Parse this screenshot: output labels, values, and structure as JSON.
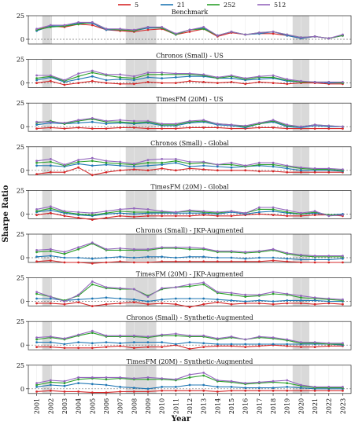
{
  "chart_data": {
    "type": "line",
    "ylabel": "Sharpe Ratio",
    "xlabel": "Year",
    "x": [
      2001,
      2002,
      2003,
      2004,
      2005,
      2006,
      2007,
      2008,
      2009,
      2010,
      2011,
      2012,
      2013,
      2014,
      2015,
      2016,
      2017,
      2018,
      2019,
      2020,
      2021,
      2022,
      2023
    ],
    "legend": {
      "placement": "top-center",
      "entries": [
        {
          "name": "5",
          "color": "#d62728"
        },
        {
          "name": "21",
          "color": "#1f77b4"
        },
        {
          "name": "252",
          "color": "#2ca02c"
        },
        {
          "name": "512",
          "color": "#9467bd"
        }
      ]
    },
    "ylim": [
      -5,
      25
    ],
    "yticks": [
      0,
      25
    ],
    "grid": true,
    "shaded_periods": [
      [
        2001.4,
        2002.1
      ],
      [
        2007.4,
        2009.6
      ],
      [
        2019.4,
        2020.6
      ]
    ],
    "panels": [
      {
        "title": "Benchmark",
        "series": [
          {
            "name": "5",
            "values": [
              10,
              14,
              13,
              16,
              15,
              10,
              9,
              8,
              10,
              11,
              5,
              8,
              11,
              3,
              7,
              5,
              6,
              6,
              4,
              1,
              3,
              1,
              4
            ]
          },
          {
            "name": "21",
            "values": [
              9,
              14,
              14,
              17,
              17,
              10,
              10,
              9,
              12,
              12,
              5,
              10,
              12,
              4,
              8,
              5,
              6,
              8,
              4,
              1,
              3,
              1,
              4
            ]
          },
          {
            "name": "252",
            "values": [
              10,
              13,
              14,
              16,
              18,
              11,
              10,
              9,
              13,
              12,
              5,
              10,
              11,
              4,
              8,
              5,
              7,
              8,
              5,
              2,
              3,
              1,
              4
            ]
          },
          {
            "name": "512",
            "values": [
              11,
              15,
              15,
              18,
              18,
              11,
              11,
              10,
              13,
              13,
              6,
              10,
              13,
              4,
              8,
              5,
              7,
              8,
              5,
              2,
              3,
              1,
              5
            ]
          }
        ]
      },
      {
        "title": "Chronos (Small) - US",
        "series": [
          {
            "name": "5",
            "values": [
              0,
              2,
              -2,
              0,
              2,
              0,
              -1,
              -1,
              1,
              0,
              0,
              2,
              1,
              0,
              1,
              -1,
              1,
              0,
              -1,
              0,
              0,
              -1,
              -1
            ]
          },
          {
            "name": "21",
            "values": [
              3,
              6,
              1,
              4,
              7,
              3,
              4,
              3,
              6,
              5,
              6,
              7,
              7,
              5,
              5,
              3,
              4,
              5,
              2,
              1,
              1,
              0,
              0
            ]
          },
          {
            "name": "252",
            "values": [
              5,
              7,
              2,
              7,
              11,
              8,
              6,
              5,
              9,
              9,
              9,
              9,
              8,
              5,
              7,
              4,
              6,
              6,
              3,
              1,
              1,
              1,
              0
            ]
          },
          {
            "name": "512",
            "values": [
              8,
              8,
              3,
              10,
              13,
              9,
              9,
              7,
              11,
              11,
              10,
              10,
              9,
              6,
              8,
              5,
              7,
              8,
              4,
              2,
              1,
              1,
              1
            ]
          }
        ]
      },
      {
        "title": "TimesFM (20M) - US",
        "series": [
          {
            "name": "5",
            "values": [
              -2,
              -1,
              -2,
              -1,
              -2,
              -2,
              -1,
              -1,
              -2,
              -2,
              -2,
              -1,
              -1,
              -1,
              -2,
              -2,
              -1,
              -1,
              -2,
              -2,
              -2,
              -2,
              -2
            ]
          },
          {
            "name": "21",
            "values": [
              2,
              4,
              3,
              4,
              5,
              3,
              4,
              3,
              4,
              1,
              1,
              4,
              5,
              2,
              1,
              -1,
              3,
              5,
              0,
              -1,
              1,
              0,
              0
            ]
          },
          {
            "name": "252",
            "values": [
              4,
              6,
              3,
              6,
              8,
              5,
              5,
              4,
              5,
              2,
              2,
              5,
              6,
              3,
              2,
              0,
              3,
              6,
              1,
              0,
              2,
              1,
              0
            ]
          },
          {
            "name": "512",
            "values": [
              5,
              5,
              4,
              7,
              9,
              6,
              7,
              6,
              6,
              3,
              3,
              6,
              7,
              3,
              2,
              1,
              4,
              7,
              2,
              0,
              2,
              1,
              0
            ]
          }
        ]
      },
      {
        "title": "Chronos (Small) - Global",
        "series": [
          {
            "name": "5",
            "values": [
              -4,
              -2,
              -2,
              3,
              -5,
              -2,
              0,
              1,
              0,
              2,
              0,
              2,
              1,
              0,
              0,
              0,
              -1,
              -1,
              -2,
              -2,
              -2,
              -2,
              -2
            ]
          },
          {
            "name": "21",
            "values": [
              5,
              5,
              4,
              7,
              5,
              6,
              5,
              4,
              5,
              6,
              8,
              4,
              5,
              4,
              3,
              4,
              5,
              4,
              2,
              0,
              0,
              0,
              -1
            ]
          },
          {
            "name": "252",
            "values": [
              8,
              9,
              5,
              9,
              10,
              8,
              7,
              6,
              8,
              8,
              10,
              7,
              8,
              6,
              6,
              4,
              6,
              6,
              4,
              2,
              1,
              1,
              0
            ]
          },
          {
            "name": "512",
            "values": [
              10,
              12,
              6,
              11,
              13,
              10,
              9,
              7,
              11,
              12,
              12,
              9,
              9,
              6,
              8,
              5,
              8,
              8,
              5,
              3,
              2,
              2,
              1
            ]
          }
        ]
      },
      {
        "title": "TimesFM (20M) - Global",
        "series": [
          {
            "name": "5",
            "values": [
              -1,
              1,
              -2,
              -4,
              -6,
              -4,
              -2,
              -3,
              -2,
              -2,
              -2,
              -2,
              -1,
              -2,
              -2,
              -1,
              0,
              -1,
              -2,
              -2,
              -1,
              -1,
              -2
            ]
          },
          {
            "name": "21",
            "values": [
              2,
              4,
              1,
              -1,
              -2,
              0,
              1,
              0,
              1,
              1,
              1,
              1,
              1,
              0,
              2,
              0,
              2,
              3,
              1,
              0,
              1,
              -1,
              0
            ]
          },
          {
            "name": "252",
            "values": [
              3,
              6,
              2,
              0,
              -1,
              1,
              3,
              2,
              2,
              2,
              2,
              3,
              2,
              1,
              3,
              1,
              5,
              5,
              2,
              0,
              2,
              -1,
              -1
            ]
          },
          {
            "name": "512",
            "values": [
              5,
              8,
              3,
              2,
              1,
              3,
              5,
              6,
              5,
              3,
              2,
              4,
              3,
              2,
              3,
              1,
              7,
              7,
              4,
              1,
              3,
              -2,
              -1
            ]
          }
        ]
      },
      {
        "title": "Chronos (Small) - JKP-Augmented",
        "series": [
          {
            "name": "5",
            "values": [
              -4,
              -3,
              -5,
              -5,
              -6,
              -5,
              -4,
              -5,
              -5,
              -4,
              -4,
              -4,
              -4,
              -4,
              -4,
              -4,
              -4,
              -3,
              -4,
              -5,
              -5,
              -5,
              -5
            ]
          },
          {
            "name": "21",
            "values": [
              1,
              2,
              0,
              0,
              -1,
              0,
              1,
              0,
              1,
              1,
              0,
              1,
              1,
              0,
              0,
              -1,
              0,
              0,
              -1,
              -2,
              -2,
              -2,
              -1
            ]
          },
          {
            "name": "252",
            "values": [
              6,
              7,
              4,
              9,
              15,
              8,
              8,
              8,
              8,
              10,
              10,
              9,
              9,
              6,
              6,
              5,
              6,
              8,
              4,
              2,
              1,
              1,
              1
            ]
          },
          {
            "name": "512",
            "values": [
              8,
              9,
              6,
              11,
              16,
              9,
              10,
              9,
              9,
              11,
              11,
              11,
              10,
              7,
              7,
              6,
              7,
              9,
              5,
              3,
              2,
              2,
              2
            ]
          }
        ]
      },
      {
        "title": "TimesFM (20M) - JKP-Augmented",
        "series": [
          {
            "name": "5",
            "values": [
              -2,
              -2,
              -3,
              -1,
              -5,
              -3,
              -2,
              -1,
              -3,
              -2,
              -3,
              -6,
              -3,
              -1,
              -3,
              -2,
              -2,
              -3,
              -2,
              -2,
              -3,
              -2,
              -3
            ]
          },
          {
            "name": "21",
            "values": [
              3,
              3,
              1,
              2,
              3,
              4,
              3,
              2,
              0,
              2,
              3,
              3,
              3,
              2,
              1,
              0,
              1,
              0,
              1,
              1,
              1,
              0,
              0
            ]
          },
          {
            "name": "252",
            "values": [
              8,
              5,
              1,
              6,
              18,
              14,
              13,
              13,
              6,
              13,
              15,
              16,
              18,
              9,
              7,
              5,
              6,
              8,
              7,
              4,
              3,
              2,
              1
            ]
          },
          {
            "name": "512",
            "values": [
              10,
              5,
              0,
              7,
              21,
              15,
              14,
              13,
              5,
              14,
              15,
              18,
              20,
              10,
              9,
              7,
              7,
              10,
              8,
              6,
              4,
              3,
              2
            ]
          }
        ]
      },
      {
        "title": "Chronos (Small) - Synthetic-Augmented",
        "series": [
          {
            "name": "5",
            "values": [
              -2,
              -2,
              -3,
              -3,
              -3,
              -2,
              -1,
              -3,
              -2,
              -2,
              0,
              -4,
              -2,
              -1,
              -1,
              -2,
              -1,
              0,
              -1,
              -2,
              -2,
              -1,
              -1
            ]
          },
          {
            "name": "21",
            "values": [
              3,
              3,
              1,
              3,
              2,
              3,
              2,
              3,
              3,
              3,
              1,
              3,
              2,
              1,
              1,
              1,
              1,
              1,
              1,
              1,
              1,
              1,
              0
            ]
          },
          {
            "name": "252",
            "values": [
              6,
              8,
              6,
              10,
              13,
              9,
              9,
              9,
              8,
              10,
              10,
              9,
              9,
              6,
              8,
              6,
              8,
              7,
              5,
              2,
              2,
              1,
              1
            ]
          },
          {
            "name": "512",
            "values": [
              8,
              9,
              7,
              11,
              15,
              10,
              10,
              10,
              9,
              11,
              12,
              10,
              10,
              7,
              9,
              6,
              9,
              8,
              6,
              3,
              3,
              2,
              2
            ]
          }
        ]
      },
      {
        "title": "TimesFM (20M) - Synthetic-Augmented",
        "series": [
          {
            "name": "5",
            "values": [
              -3,
              -2,
              -3,
              -3,
              -4,
              -4,
              -3,
              -3,
              -3,
              -2,
              -2,
              -2,
              -2,
              -3,
              -2,
              -2,
              -2,
              -2,
              -2,
              -2,
              -2,
              -2,
              -2
            ]
          },
          {
            "name": "21",
            "values": [
              2,
              4,
              3,
              6,
              5,
              4,
              2,
              1,
              0,
              2,
              2,
              4,
              4,
              2,
              2,
              1,
              1,
              1,
              2,
              1,
              0,
              0,
              0
            ]
          },
          {
            "name": "252",
            "values": [
              4,
              7,
              6,
              10,
              11,
              10,
              11,
              10,
              10,
              10,
              9,
              12,
              14,
              8,
              7,
              5,
              6,
              7,
              6,
              3,
              1,
              1,
              1
            ]
          },
          {
            "name": "512",
            "values": [
              6,
              9,
              8,
              12,
              12,
              12,
              12,
              11,
              12,
              11,
              10,
              15,
              17,
              9,
              8,
              6,
              7,
              8,
              9,
              4,
              2,
              2,
              2
            ]
          }
        ]
      }
    ]
  }
}
